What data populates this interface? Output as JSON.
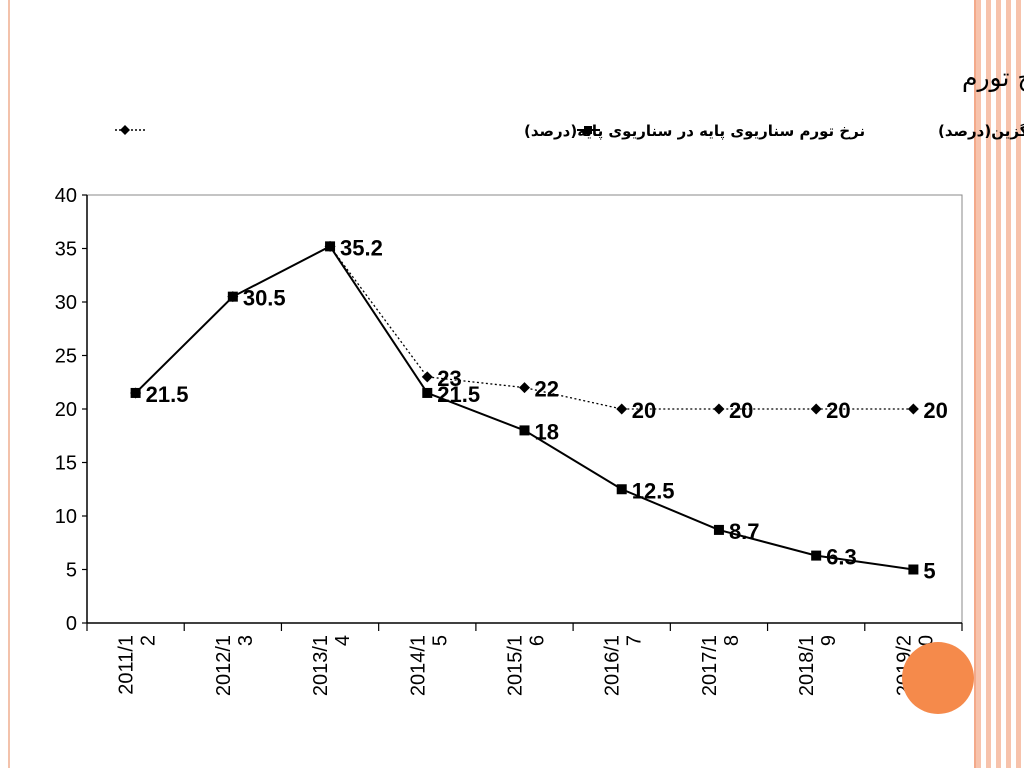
{
  "chart_data": {
    "type": "line",
    "title": "آینده میان مدت اقتصاد ایران-نرخ تورم",
    "categories": [
      "2011/12",
      "2012/13",
      "2013/14",
      "2014/15",
      "2015/16",
      "2016/17",
      "2017/18",
      "2018/19",
      "2019/20"
    ],
    "category_lines": [
      [
        "2011/1",
        "2"
      ],
      [
        "2012/1",
        "3"
      ],
      [
        "2013/1",
        "4"
      ],
      [
        "2014/1",
        "5"
      ],
      [
        "2015/1",
        "6"
      ],
      [
        "2016/1",
        "7"
      ],
      [
        "2017/1",
        "8"
      ],
      [
        "2018/1",
        "9"
      ],
      [
        "2019/2",
        "0"
      ]
    ],
    "ylim": [
      0,
      40
    ],
    "yticks": [
      "0",
      "5",
      "10",
      "15",
      "20",
      "25",
      "30",
      "35",
      "40"
    ],
    "grid": false,
    "legend_position": "top",
    "series": [
      {
        "name": "نرخ تورم در سناریوی جایگزین(درصد)",
        "style": "solid",
        "marker": "square",
        "color": "#000000",
        "values": [
          21.5,
          30.5,
          35.2,
          21.5,
          18,
          12.5,
          8.7,
          6.3,
          5
        ],
        "labels": [
          "21.5",
          "30.5",
          "35.2",
          "21.5",
          "18",
          "12.5",
          "8.7",
          "6.3",
          "5"
        ]
      },
      {
        "name": "نرخ تورم سناریوی پایه در سناریوی پایه(درصد)",
        "style": "dotted",
        "marker": "diamond",
        "color": "#000000",
        "values": [
          21.5,
          30.5,
          35.2,
          23,
          22,
          20,
          20,
          20,
          20
        ],
        "labels": [
          "",
          "",
          "",
          "23",
          "22",
          "20",
          "20",
          "20",
          "20"
        ]
      }
    ]
  }
}
